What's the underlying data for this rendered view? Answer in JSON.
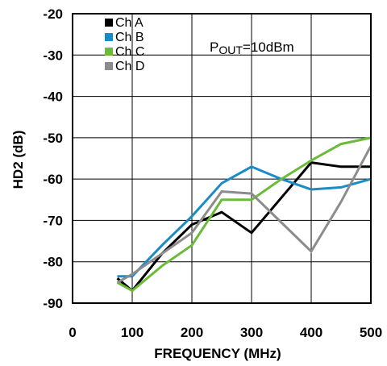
{
  "chart_data": {
    "type": "line",
    "xlabel": "FREQUENCY (MHz)",
    "ylabel": "HD2 (dB)",
    "xlim": [
      0,
      500
    ],
    "ylim": [
      -90,
      -20
    ],
    "x_ticks": [
      0,
      100,
      200,
      300,
      400,
      500
    ],
    "y_ticks": [
      -20,
      -30,
      -40,
      -50,
      -60,
      -70,
      -80,
      -90
    ],
    "grid": true,
    "legend_position": "top-left",
    "annotation": {
      "main": "P",
      "sub": "OUT",
      "rest": "=10dBm"
    },
    "series": [
      {
        "name": "Ch A",
        "color": "#000000",
        "x": [
          75,
          100,
          150,
          200,
          250,
          300,
          350,
          400,
          450,
          500
        ],
        "y": [
          -84,
          -87,
          -78,
          -71,
          -68,
          -73,
          -64.5,
          -56,
          -57,
          -57
        ]
      },
      {
        "name": "Ch B",
        "color": "#1a8bc7",
        "x": [
          75,
          100,
          150,
          200,
          250,
          300,
          350,
          400,
          450,
          500
        ],
        "y": [
          -83.5,
          -83.5,
          -76,
          -69,
          -61,
          -57,
          -60,
          -62.5,
          -62,
          -60
        ]
      },
      {
        "name": "Ch C",
        "color": "#6abb3a",
        "x": [
          75,
          100,
          150,
          200,
          250,
          300,
          350,
          400,
          450,
          500
        ],
        "y": [
          -85,
          -87,
          -81,
          -76,
          -65,
          -65,
          -60,
          -55.5,
          -51.5,
          -50
        ]
      },
      {
        "name": "Ch D",
        "color": "#8c8c8c",
        "x": [
          75,
          100,
          150,
          200,
          250,
          300,
          350,
          400,
          450,
          500
        ],
        "y": [
          -85,
          -83,
          -78,
          -73,
          -63,
          -63.5,
          -70.5,
          -77.5,
          -65.5,
          -52
        ]
      }
    ]
  }
}
